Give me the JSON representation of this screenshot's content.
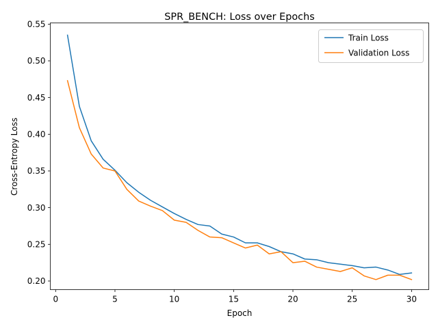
{
  "chart_data": {
    "type": "line",
    "title": "SPR_BENCH: Loss over Epochs",
    "xlabel": "Epoch",
    "ylabel": "Cross-Entropy Loss",
    "xlim": [
      -0.45,
      31.45
    ],
    "ylim": [
      0.1883,
      0.5517
    ],
    "xticks": [
      0,
      5,
      10,
      15,
      20,
      25,
      30
    ],
    "xtick_labels": [
      "0",
      "5",
      "10",
      "15",
      "20",
      "25",
      "30"
    ],
    "yticks": [
      0.2,
      0.25,
      0.3,
      0.35,
      0.4,
      0.45,
      0.5,
      0.55
    ],
    "ytick_labels": [
      "0.20",
      "0.25",
      "0.30",
      "0.35",
      "0.40",
      "0.45",
      "0.50",
      "0.55"
    ],
    "grid": false,
    "legend_position": "top-right",
    "x": [
      1,
      2,
      3,
      4,
      5,
      6,
      7,
      8,
      9,
      10,
      11,
      12,
      13,
      14,
      15,
      16,
      17,
      18,
      19,
      20,
      21,
      22,
      23,
      24,
      25,
      26,
      27,
      28,
      29,
      30
    ],
    "series": [
      {
        "name": "Train Loss",
        "color": "#1f77b4",
        "values": [
          0.535,
          0.438,
          0.391,
          0.366,
          0.351,
          0.334,
          0.321,
          0.31,
          0.301,
          0.292,
          0.284,
          0.277,
          0.275,
          0.264,
          0.26,
          0.252,
          0.252,
          0.247,
          0.24,
          0.237,
          0.23,
          0.229,
          0.225,
          0.223,
          0.221,
          0.218,
          0.219,
          0.215,
          0.209,
          0.211
        ]
      },
      {
        "name": "Validation Loss",
        "color": "#ff7f0e",
        "values": [
          0.473,
          0.409,
          0.373,
          0.354,
          0.35,
          0.325,
          0.309,
          0.302,
          0.296,
          0.283,
          0.28,
          0.269,
          0.26,
          0.259,
          0.252,
          0.245,
          0.249,
          0.237,
          0.24,
          0.225,
          0.227,
          0.219,
          0.216,
          0.213,
          0.218,
          0.207,
          0.202,
          0.208,
          0.208,
          0.202
        ]
      }
    ]
  }
}
